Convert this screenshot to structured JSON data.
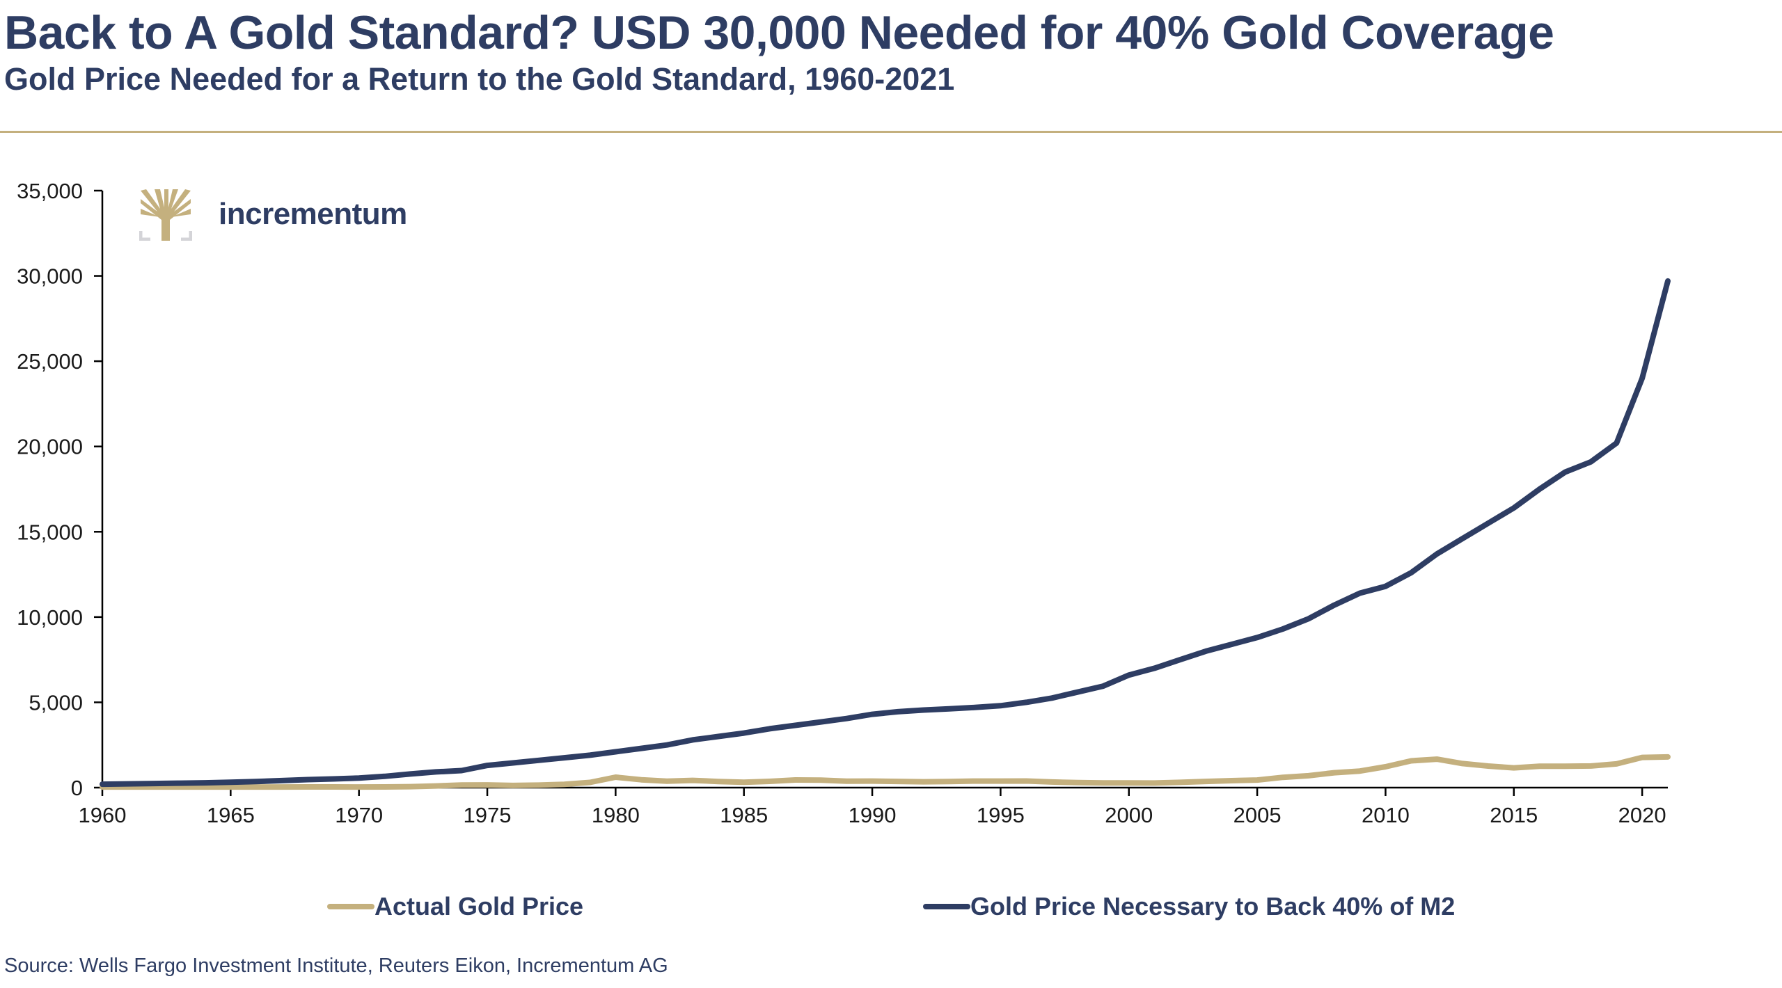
{
  "header": {
    "title": "Back to A Gold Standard? USD 30,000 Needed for 40% Gold Coverage",
    "subtitle": "Gold Price Needed for a Return to the Gold Standard, 1960-2021"
  },
  "logo": {
    "text": "incrementum",
    "icon": "tree-icon"
  },
  "colors": {
    "navy": "#2E3D63",
    "gold": "#C4B07E"
  },
  "legend": [
    {
      "label": "Actual Gold Price",
      "color": "#C4B07E"
    },
    {
      "label": "Gold Price Necessary to Back 40% of M2",
      "color": "#2E3D63"
    }
  ],
  "source": "Source: Wells Fargo Investment Institute, Reuters Eikon, Incrementum AG",
  "chart_data": {
    "type": "line",
    "title": "Back to A Gold Standard? USD 30,000 Needed for 40% Gold Coverage",
    "subtitle": "Gold Price Needed for a Return to the Gold Standard, 1960-2021",
    "xlabel": "",
    "ylabel": "",
    "xlim": [
      1960,
      2021
    ],
    "ylim": [
      0,
      35000
    ],
    "grid": false,
    "legend_position": "bottom",
    "x_ticks": [
      1960,
      1965,
      1970,
      1975,
      1980,
      1985,
      1990,
      1995,
      2000,
      2005,
      2010,
      2015,
      2020
    ],
    "x_tick_labels": [
      "1960",
      "1965",
      "1970",
      "1975",
      "1980",
      "1985",
      "1990",
      "1995",
      "2000",
      "2005",
      "2010",
      "2015",
      "2020"
    ],
    "y_ticks": [
      0,
      5000,
      10000,
      15000,
      20000,
      25000,
      30000,
      35000
    ],
    "y_tick_labels": [
      "0",
      "5,000",
      "10,000",
      "15,000",
      "20,000",
      "25,000",
      "30,000",
      "35,000"
    ],
    "x": [
      1960,
      1961,
      1962,
      1963,
      1964,
      1965,
      1966,
      1967,
      1968,
      1969,
      1970,
      1971,
      1972,
      1973,
      1974,
      1975,
      1976,
      1977,
      1978,
      1979,
      1980,
      1981,
      1982,
      1983,
      1984,
      1985,
      1986,
      1987,
      1988,
      1989,
      1990,
      1991,
      1992,
      1993,
      1994,
      1995,
      1996,
      1997,
      1998,
      1999,
      2000,
      2001,
      2002,
      2003,
      2004,
      2005,
      2006,
      2007,
      2008,
      2009,
      2010,
      2011,
      2012,
      2013,
      2014,
      2015,
      2016,
      2017,
      2018,
      2019,
      2020,
      2021
    ],
    "series": [
      {
        "name": "Actual Gold Price",
        "color": "#C4B07E",
        "values": [
          35,
          35,
          35,
          35,
          35,
          35,
          35,
          35,
          39,
          41,
          36,
          41,
          58,
          97,
          154,
          161,
          125,
          148,
          193,
          307,
          612,
          460,
          376,
          424,
          361,
          317,
          368,
          447,
          437,
          381,
          384,
          362,
          344,
          360,
          384,
          384,
          388,
          331,
          294,
          279,
          279,
          271,
          310,
          364,
          409,
          445,
          604,
          697,
          872,
          972,
          1225,
          1572,
          1669,
          1411,
          1266,
          1160,
          1251,
          1257,
          1268,
          1393,
          1770,
          1800
        ]
      },
      {
        "name": "Gold Price Necessary to Back 40% of M2",
        "color": "#2E3D63",
        "values": [
          200,
          220,
          240,
          260,
          280,
          320,
          360,
          410,
          470,
          510,
          560,
          660,
          800,
          920,
          1000,
          1300,
          1450,
          1600,
          1750,
          1900,
          2100,
          2300,
          2500,
          2800,
          3000,
          3200,
          3450,
          3650,
          3850,
          4050,
          4300,
          4450,
          4550,
          4620,
          4700,
          4800,
          5000,
          5250,
          5600,
          5950,
          6600,
          7000,
          7500,
          8000,
          8400,
          8800,
          9300,
          9900,
          10700,
          11400,
          11800,
          12600,
          13700,
          14600,
          15500,
          16400,
          17500,
          18500,
          19100,
          20200,
          24000,
          29700
        ]
      }
    ]
  }
}
